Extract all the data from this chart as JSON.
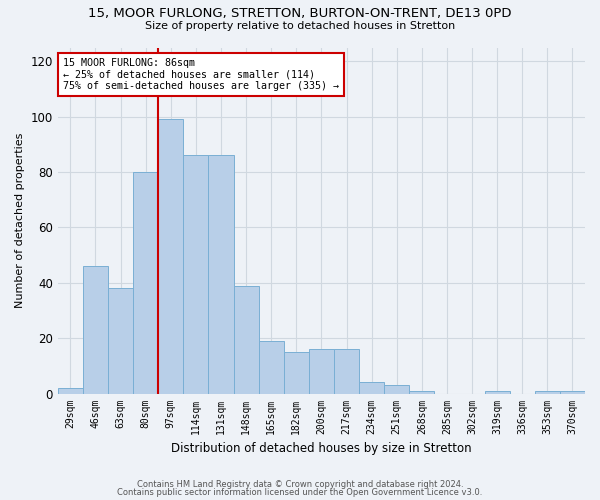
{
  "title_line1": "15, MOOR FURLONG, STRETTON, BURTON-ON-TRENT, DE13 0PD",
  "title_line2": "Size of property relative to detached houses in Stretton",
  "xlabel": "Distribution of detached houses by size in Stretton",
  "ylabel": "Number of detached properties",
  "categories": [
    "29sqm",
    "46sqm",
    "63sqm",
    "80sqm",
    "97sqm",
    "114sqm",
    "131sqm",
    "148sqm",
    "165sqm",
    "182sqm",
    "200sqm",
    "217sqm",
    "234sqm",
    "251sqm",
    "268sqm",
    "285sqm",
    "302sqm",
    "319sqm",
    "336sqm",
    "353sqm",
    "370sqm"
  ],
  "values": [
    2,
    46,
    38,
    80,
    99,
    86,
    86,
    39,
    19,
    15,
    16,
    16,
    4,
    3,
    1,
    0,
    0,
    1,
    0,
    1,
    1
  ],
  "bar_color": "#b8cfe8",
  "bar_edge_color": "#7aafd4",
  "red_line_index": 4,
  "annotation_text": "15 MOOR FURLONG: 86sqm\n← 25% of detached houses are smaller (114)\n75% of semi-detached houses are larger (335) →",
  "annotation_box_color": "#ffffff",
  "annotation_box_edge_color": "#cc0000",
  "red_line_color": "#cc0000",
  "ylim": [
    0,
    125
  ],
  "yticks": [
    0,
    20,
    40,
    60,
    80,
    100,
    120
  ],
  "grid_color": "#d0d8e0",
  "bg_color": "#eef2f7",
  "footer_line1": "Contains HM Land Registry data © Crown copyright and database right 2024.",
  "footer_line2": "Contains public sector information licensed under the Open Government Licence v3.0."
}
